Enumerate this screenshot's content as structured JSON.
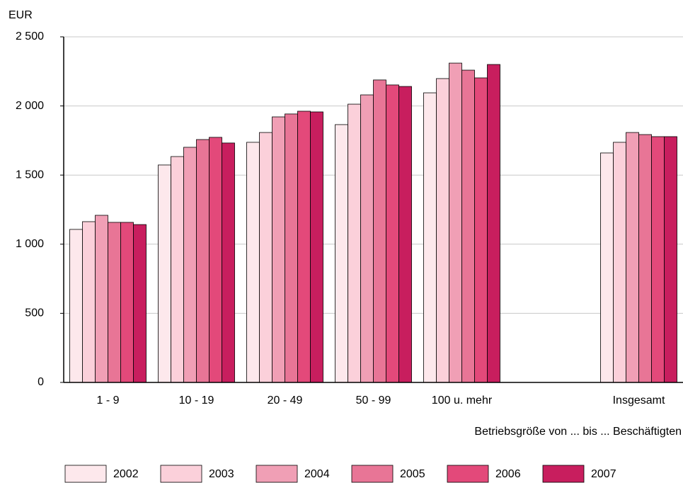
{
  "chart_data": {
    "type": "bar",
    "y_unit": "EUR",
    "x_label": "Betriebsgröße von ... bis ... Beschäftigten",
    "categories": [
      "1 - 9",
      "10 - 19",
      "20 - 49",
      "50 - 99",
      "100 u. mehr",
      null,
      "Insgesamt"
    ],
    "series": [
      {
        "name": "2002",
        "color": "#fde8ec",
        "values": [
          1107,
          1573,
          1737,
          1865,
          2095,
          null,
          1660
        ]
      },
      {
        "name": "2003",
        "color": "#fbd0da",
        "values": [
          1163,
          1634,
          1808,
          2013,
          2198,
          null,
          1737
        ]
      },
      {
        "name": "2004",
        "color": "#f09fb5",
        "values": [
          1209,
          1701,
          1921,
          2080,
          2310,
          null,
          1808
        ]
      },
      {
        "name": "2005",
        "color": "#e87596",
        "values": [
          1158,
          1757,
          1942,
          2188,
          2259,
          null,
          1793
        ]
      },
      {
        "name": "2006",
        "color": "#e3497a",
        "values": [
          1158,
          1773,
          1962,
          2152,
          2203,
          null,
          1778
        ]
      },
      {
        "name": "2007",
        "color": "#c81e5e",
        "values": [
          1142,
          1732,
          1957,
          2141,
          2300,
          null,
          1778
        ]
      }
    ],
    "ylim": [
      0,
      2500
    ],
    "yticks": [
      0,
      500,
      {
        "value": 1000,
        "label": "1 000"
      },
      {
        "value": 1500,
        "label": "1 500"
      },
      {
        "value": 2000,
        "label": "2 000"
      },
      {
        "value": 2500,
        "label": "2 500"
      }
    ],
    "grid": true,
    "legend": "bottom"
  }
}
